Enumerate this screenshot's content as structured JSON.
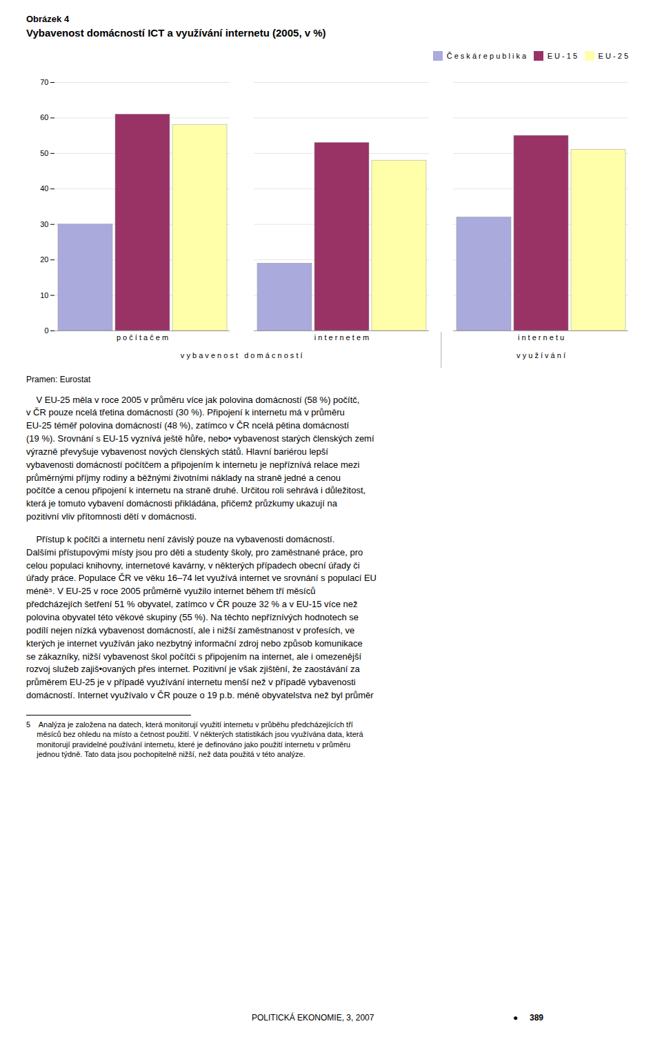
{
  "chart_data": {
    "type": "bar",
    "title": "Obrázek 4",
    "subtitle": "Vybavenost domácností ICT a využívání internetu (2005, v %)",
    "categories": [
      "p o č í t a č e m",
      "i n t e r n e t e m",
      "i n t e r n e t u"
    ],
    "category_groups": [
      {
        "label": "v y b a v e n o s t   d o m á c n o s t í",
        "categories": [
          "p o č í t a č e m",
          "i n t e r n e t e m"
        ]
      },
      {
        "label": "v y u ž í v á n í",
        "categories": [
          "i n t e r n e t u"
        ]
      }
    ],
    "series": [
      {
        "name": "Č e s k á   r e p u b l i k a",
        "color": "#aaaadd",
        "values": [
          30,
          19,
          32
        ]
      },
      {
        "name": "E U - 1 5",
        "color": "#993366",
        "values": [
          61,
          53,
          55
        ]
      },
      {
        "name": "E U - 2 5",
        "color": "#ffffaa",
        "values": [
          58,
          48,
          51
        ]
      }
    ],
    "ylim": [
      0,
      70
    ],
    "yticks": [
      0,
      10,
      20,
      30,
      40,
      50,
      60,
      70
    ],
    "grid": true,
    "legend": "upper right",
    "annotations": {
      "source": "Pramen: Eurostat",
      "body": [
        "    V EU-25 měla v roce 2005 v průměru více jak polovina domácností (58 %) počítč,\nv ČR pouze ncelá třetina domácností (30 %). Připojení k internetu má v průměru\nEU-25 téměř polovina domácností (48 %), zatímco v ČR ncelá pětina domácností\n(19 %). Srovnání s EU-15 vyznívá ještě hůře, nebo• vybavenost starých členských zemí\nvýrazně převyšuje vybavenost nových členských států. Hlavní bariérou lepší\nvybavenosti domácností počítčem a připojením k internetu je nepříznívá relace mezi\nprůměrnými příjmy rodiny a běžnými životními náklady na straně jedné a cenou\npočítče a cenou připojení k internetu na straně druhé. Určitou roli sehrává i důležitost,\nkterá je tomuto vybavení domácnosti přikládána, přičemž průzkumy ukazují na\npozitivní vliv přítomnosti dětí v domácnosti.",
        "    Přístup k počítči a internetu není závislý pouze na vybavenosti domácností.\nDalšími přístupovými místy jsou pro děti a studenty školy, pro zaměstnané práce, pro\ncelou populaci knihovny, internetové kavárny, v některých případech obecní úřady či\núřady práce. Populace ČR ve věku 16–74 let využívá internet ve srovnání s populací EU\nméně⁵. V EU-25 v roce 2005 průměrně využilo internet během tří měsíců\npředcházejích šetření 51 % obyvatel, zatímco v ČR pouze 32 % a v EU-15 více než\npolovina obyvatel této věkové skupiny (55 %). Na těchto nepříznívých hodnotech se\npodílí nejen nízká vybavenost domácností, ale i nižší zaměstnanost v profesích, ve\nkterých je internet využíván jako nezbytný informační zdroj nebo způsob komunikace\nse zákazníky, nižší vybavenost škol počítči s připojením na internet, ale i omezenější\nrozvoj služeb zajiš•ovaných přes internet. Pozitivní je však zjištění, že zaostávání za\nprůměrem EU-25 je v případě využívání internetu menší než v případě vybavenosti\ndomácností. Internet využívalo v ČR pouze o 19 p.b. méně obyvatelstva než byl průměr"
      ],
      "footnote": "5    Analýza je založena na datech, která monitorují využití internetu v průběhu předcházejících tří\n     měsíců bez ohledu na místo a četnost použití. V některých statistikách jsou využívána data, která\n     monitorují pravidelné používání internetu, které je definováno jako použití internetu v průměru\n     jednou týdně. Tato data jsou pochopitelně nižší, než data použitá v této analýze.",
      "footer": [
        "POLITICKÁ EKONOMIE, 3, 2007",
        "●",
        "389"
      ]
    }
  }
}
